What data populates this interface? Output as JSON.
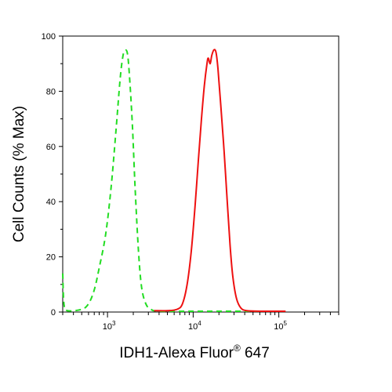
{
  "chart_data": {
    "type": "line",
    "xlabel_main": "IDH1-Alexa Fluor",
    "xlabel_sup": "®",
    "xlabel_tail": " 647",
    "ylabel": "Cell Counts (% Max)",
    "x_scale": "log",
    "xlim": [
      300,
      500000
    ],
    "ylim": [
      0,
      100
    ],
    "x_ticks": [
      {
        "label_base": "10",
        "label_exp": "3"
      },
      {
        "label_base": "10",
        "label_exp": "4"
      },
      {
        "label_base": "10",
        "label_exp": "5"
      }
    ],
    "y_ticks": [
      "0",
      "20",
      "40",
      "60",
      "80",
      "100"
    ],
    "grid": false,
    "series": [
      {
        "color": "#22dd22",
        "style": "dashed",
        "points": [
          [
            300,
            14
          ],
          [
            310,
            3
          ],
          [
            340,
            0.5
          ],
          [
            500,
            1
          ],
          [
            600,
            3
          ],
          [
            700,
            8
          ],
          [
            800,
            16
          ],
          [
            950,
            28
          ],
          [
            1100,
            45
          ],
          [
            1250,
            65
          ],
          [
            1400,
            84
          ],
          [
            1500,
            92
          ],
          [
            1580,
            94.5
          ],
          [
            1700,
            94
          ],
          [
            1800,
            86
          ],
          [
            1950,
            68
          ],
          [
            2100,
            45
          ],
          [
            2300,
            22
          ],
          [
            2500,
            9
          ],
          [
            2800,
            3
          ],
          [
            3200,
            1
          ],
          [
            4000,
            0.3
          ],
          [
            10000,
            0.2
          ],
          [
            30000,
            0.2
          ],
          [
            100000,
            0.2
          ]
        ]
      },
      {
        "color": "#ee1111",
        "style": "solid",
        "points": [
          [
            3500,
            0.5
          ],
          [
            5000,
            0.5
          ],
          [
            6500,
            1
          ],
          [
            7500,
            3
          ],
          [
            8500,
            10
          ],
          [
            9500,
            22
          ],
          [
            10500,
            38
          ],
          [
            11500,
            55
          ],
          [
            12500,
            70
          ],
          [
            13500,
            82
          ],
          [
            14500,
            90
          ],
          [
            15000,
            92
          ],
          [
            15800,
            90
          ],
          [
            16500,
            93
          ],
          [
            17500,
            95
          ],
          [
            18500,
            94
          ],
          [
            19500,
            88
          ],
          [
            21000,
            75
          ],
          [
            23000,
            58
          ],
          [
            25000,
            40
          ],
          [
            27000,
            24
          ],
          [
            29000,
            13
          ],
          [
            32000,
            5
          ],
          [
            36000,
            1.5
          ],
          [
            42000,
            0.5
          ],
          [
            60000,
            0.3
          ],
          [
            120000,
            0.2
          ]
        ]
      }
    ]
  }
}
